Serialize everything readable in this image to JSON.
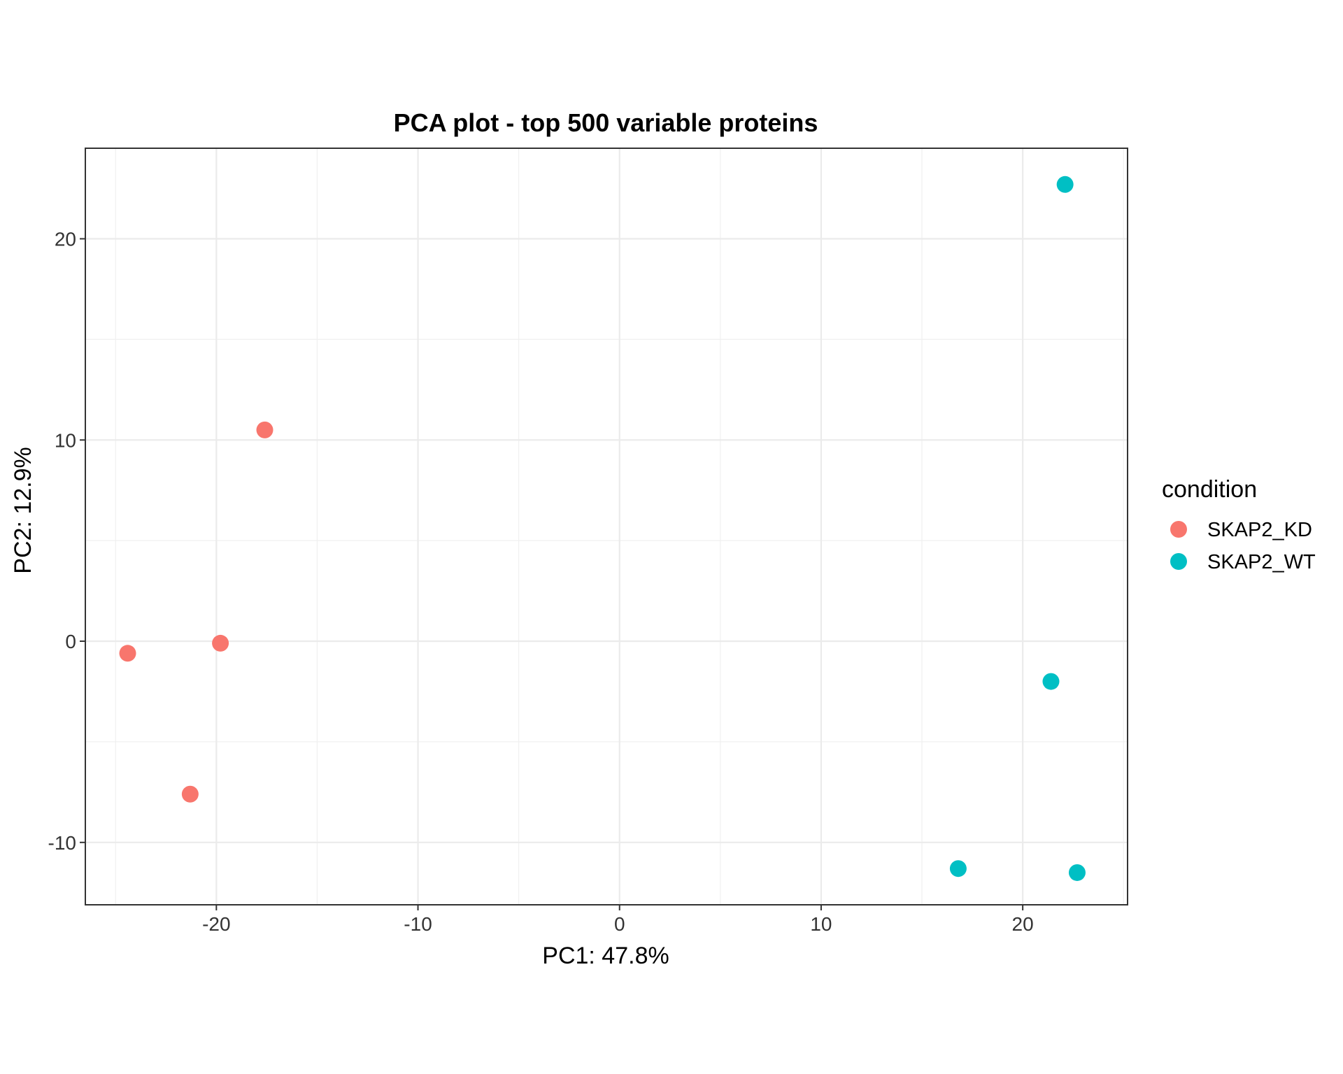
{
  "chart_data": {
    "type": "scatter",
    "title": "PCA plot - top 500 variable proteins",
    "xlabel": "PC1: 47.8%",
    "ylabel": "PC2: 12.9%",
    "xlim": [
      -26.5,
      25.2
    ],
    "ylim": [
      -13.1,
      24.5
    ],
    "x_ticks": [
      -20,
      -10,
      0,
      10,
      20
    ],
    "y_ticks": [
      -10,
      0,
      10,
      20
    ],
    "x_tick_labels": [
      "-20",
      "-10",
      "0",
      "10",
      "20"
    ],
    "y_tick_labels": [
      "-10",
      "0",
      "10",
      "20"
    ],
    "grid": true,
    "legend": {
      "title": "condition",
      "placement": "right"
    },
    "series": [
      {
        "name": "SKAP2_KD",
        "color": "#F8766D",
        "points": [
          {
            "x": -17.6,
            "y": 10.5
          },
          {
            "x": -24.4,
            "y": -0.6
          },
          {
            "x": -19.8,
            "y": -0.1
          },
          {
            "x": -21.3,
            "y": -7.6
          }
        ]
      },
      {
        "name": "SKAP2_WT",
        "color": "#00BFC4",
        "points": [
          {
            "x": 22.1,
            "y": 22.7
          },
          {
            "x": 21.4,
            "y": -2.0
          },
          {
            "x": 16.8,
            "y": -11.3
          },
          {
            "x": 22.7,
            "y": -11.5
          }
        ]
      }
    ]
  }
}
